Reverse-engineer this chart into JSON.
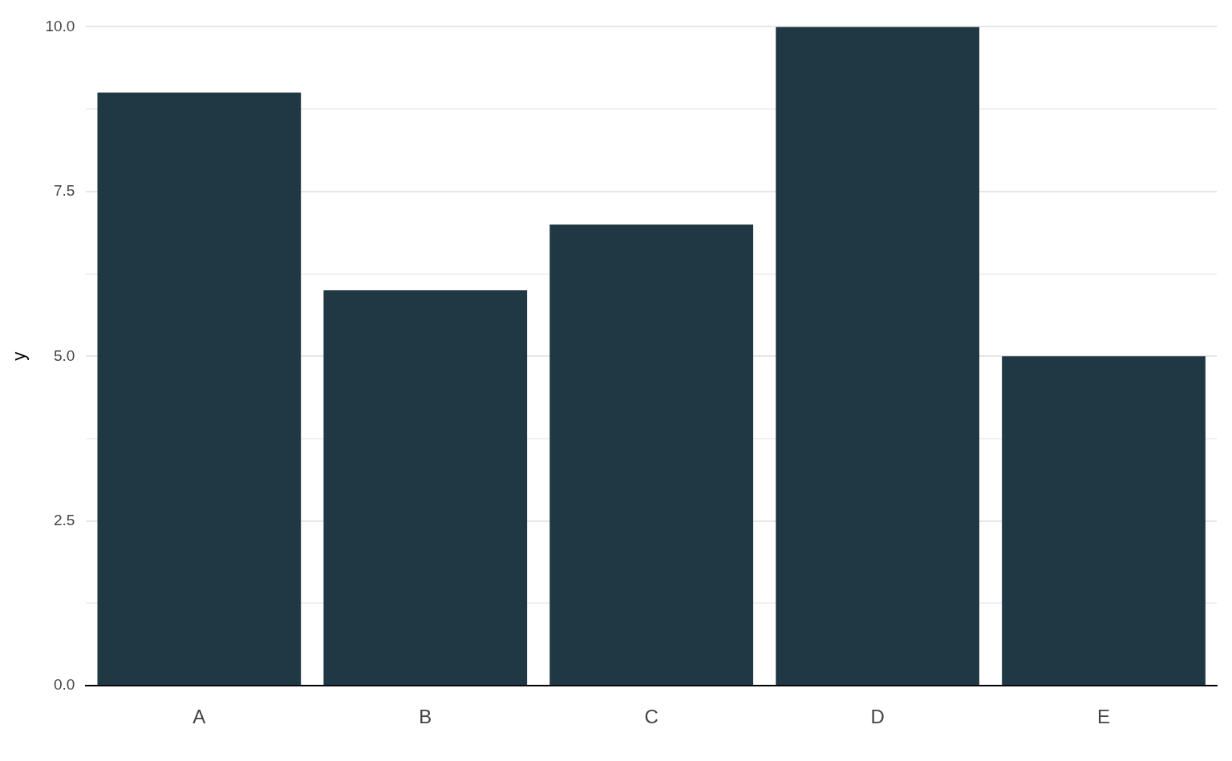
{
  "chart_data": {
    "type": "bar",
    "ylabel": "y",
    "categories": [
      "A",
      "B",
      "C",
      "D",
      "E"
    ],
    "values": [
      9,
      6,
      7,
      10,
      5
    ],
    "color": "#203744",
    "ylim": [
      0,
      10
    ],
    "yticks": [
      {
        "value": 0,
        "label": "0.0"
      },
      {
        "value": 1.25,
        "label": null
      },
      {
        "value": 2.5,
        "label": "2.5"
      },
      {
        "value": 3.75,
        "label": null
      },
      {
        "value": 5,
        "label": "5.0"
      },
      {
        "value": 6.25,
        "label": null
      },
      {
        "value": 7.5,
        "label": "7.5"
      },
      {
        "value": 8.75,
        "label": null
      },
      {
        "value": 10,
        "label": "10.0"
      }
    ],
    "grid": "y"
  }
}
